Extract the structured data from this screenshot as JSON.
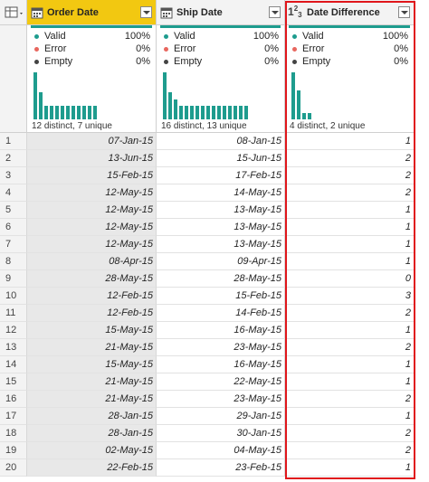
{
  "columns": [
    {
      "name": "Order Date",
      "stats": [
        {
          "label": "Valid",
          "value": "100%"
        },
        {
          "label": "Error",
          "value": "0%"
        },
        {
          "label": "Empty",
          "value": "0%"
        }
      ],
      "summary": "12 distinct, 7 unique"
    },
    {
      "name": "Ship Date",
      "stats": [
        {
          "label": "Valid",
          "value": "100%"
        },
        {
          "label": "Error",
          "value": "0%"
        },
        {
          "label": "Empty",
          "value": "0%"
        }
      ],
      "summary": "16 distinct, 13 unique"
    },
    {
      "name": "Date Difference",
      "type_icon": [
        "1",
        "2",
        "3"
      ],
      "stats": [
        {
          "label": "Valid",
          "value": "100%"
        },
        {
          "label": "Error",
          "value": "0%"
        },
        {
          "label": "Empty",
          "value": "0%"
        }
      ],
      "summary": "4 distinct, 2 unique"
    }
  ],
  "rows": [
    [
      1,
      "07-Jan-15",
      "08-Jan-15",
      1
    ],
    [
      2,
      "13-Jun-15",
      "15-Jun-15",
      2
    ],
    [
      3,
      "15-Feb-15",
      "17-Feb-15",
      2
    ],
    [
      4,
      "12-May-15",
      "14-May-15",
      2
    ],
    [
      5,
      "12-May-15",
      "13-May-15",
      1
    ],
    [
      6,
      "12-May-15",
      "13-May-15",
      1
    ],
    [
      7,
      "12-May-15",
      "13-May-15",
      1
    ],
    [
      8,
      "08-Apr-15",
      "09-Apr-15",
      1
    ],
    [
      9,
      "28-May-15",
      "28-May-15",
      0
    ],
    [
      10,
      "12-Feb-15",
      "15-Feb-15",
      3
    ],
    [
      11,
      "12-Feb-15",
      "14-Feb-15",
      2
    ],
    [
      12,
      "15-May-15",
      "16-May-15",
      1
    ],
    [
      13,
      "21-May-15",
      "23-May-15",
      2
    ],
    [
      14,
      "15-May-15",
      "16-May-15",
      1
    ],
    [
      15,
      "21-May-15",
      "22-May-15",
      1
    ],
    [
      16,
      "21-May-15",
      "23-May-15",
      2
    ],
    [
      17,
      "28-Jan-15",
      "29-Jan-15",
      1
    ],
    [
      18,
      "28-Jan-15",
      "30-Jan-15",
      2
    ],
    [
      19,
      "02-May-15",
      "04-May-15",
      2
    ],
    [
      20,
      "22-Feb-15",
      "23-Feb-15",
      1
    ]
  ]
}
